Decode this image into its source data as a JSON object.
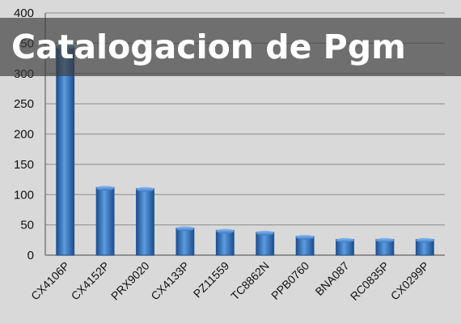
{
  "banner": {
    "title": "Catalogacion de Pgm"
  },
  "colors": {
    "bar": "#3a78c6",
    "bar_dark": "#1f4e8c",
    "grid": "#9a9a9a",
    "banner": "#3c3c3c"
  },
  "chart_data": {
    "type": "bar",
    "title": "",
    "xlabel": "",
    "ylabel": "",
    "categories": [
      "CX4106P",
      "CX4152P",
      "PRX9020",
      "CX4133P",
      "PZ11559",
      "TC8862N",
      "PPB0760",
      "BNA087",
      "RC0835P",
      "CX0299P"
    ],
    "values": [
      345,
      112,
      110,
      45,
      41,
      38,
      31,
      26,
      26,
      26
    ],
    "ylim": [
      0,
      400
    ],
    "yticks": [
      0,
      50,
      100,
      150,
      200,
      250,
      300,
      350,
      400
    ],
    "grid": true,
    "legend": "none"
  }
}
